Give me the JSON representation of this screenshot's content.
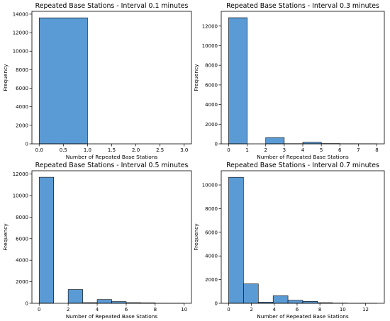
{
  "chart_data": [
    {
      "type": "bar",
      "title": "Repeated Base Stations - Interval 0.1 minutes",
      "xlabel": "Number of Repeated Base Stations",
      "ylabel": "Frequency",
      "xlim": [
        -0.15,
        3.15
      ],
      "ylim": [
        0,
        14300
      ],
      "xticks": [
        "0.0",
        "0.5",
        "1.0",
        "1.5",
        "2.0",
        "2.5",
        "3.0"
      ],
      "yticks": [
        "0",
        "2000",
        "4000",
        "6000",
        "8000",
        "10000",
        "12000",
        "14000"
      ],
      "bins": [
        {
          "x0": 0,
          "x1": 1,
          "value": 13600
        },
        {
          "x0": 1,
          "x1": 2,
          "value": 0
        },
        {
          "x0": 2,
          "x1": 3,
          "value": 0
        }
      ],
      "bar_color": "#5b9bd5",
      "grid": false
    },
    {
      "type": "bar",
      "title": "Repeated Base Stations - Interval 0.3 minutes",
      "xlabel": "Number of Repeated Base Stations",
      "ylabel": "Frequency",
      "xlim": [
        -0.4,
        8.4
      ],
      "ylim": [
        0,
        13500
      ],
      "xticks": [
        "0",
        "1",
        "2",
        "3",
        "4",
        "5",
        "6",
        "7",
        "8"
      ],
      "yticks": [
        "0",
        "2000",
        "4000",
        "6000",
        "8000",
        "10000",
        "12000"
      ],
      "bins": [
        {
          "x0": 0,
          "x1": 1,
          "value": 12850
        },
        {
          "x0": 1,
          "x1": 2,
          "value": 0
        },
        {
          "x0": 2,
          "x1": 3,
          "value": 640
        },
        {
          "x0": 3,
          "x1": 4,
          "value": 20
        },
        {
          "x0": 4,
          "x1": 5,
          "value": 170
        },
        {
          "x0": 5,
          "x1": 6,
          "value": 30
        },
        {
          "x0": 6,
          "x1": 7,
          "value": 15
        },
        {
          "x0": 7,
          "x1": 8,
          "value": 8
        }
      ],
      "bar_color": "#5b9bd5",
      "grid": false
    },
    {
      "type": "bar",
      "title": "Repeated Base Stations - Interval 0.5 minutes",
      "xlabel": "Number of Repeated Base Stations",
      "ylabel": "Frequency",
      "xlim": [
        -0.5,
        10.5
      ],
      "ylim": [
        0,
        12300
      ],
      "xticks": [
        "0",
        "2",
        "4",
        "6",
        "8",
        "10"
      ],
      "yticks": [
        "0",
        "2000",
        "4000",
        "6000",
        "8000",
        "10000",
        "12000"
      ],
      "bins": [
        {
          "x0": 0,
          "x1": 1,
          "value": 11700
        },
        {
          "x0": 1,
          "x1": 2,
          "value": 0
        },
        {
          "x0": 2,
          "x1": 3,
          "value": 1280
        },
        {
          "x0": 3,
          "x1": 4,
          "value": 60
        },
        {
          "x0": 4,
          "x1": 5,
          "value": 350
        },
        {
          "x0": 5,
          "x1": 6,
          "value": 160
        },
        {
          "x0": 6,
          "x1": 7,
          "value": 60
        },
        {
          "x0": 7,
          "x1": 8,
          "value": 40
        },
        {
          "x0": 8,
          "x1": 9,
          "value": 10
        },
        {
          "x0": 9,
          "x1": 10,
          "value": 5
        }
      ],
      "bar_color": "#5b9bd5",
      "grid": false
    },
    {
      "type": "bar",
      "title": "Repeated Base Stations - Interval 0.7 minutes",
      "xlabel": "Number of Repeated Base Stations",
      "ylabel": "Frequency",
      "xlim": [
        -0.65,
        13.65
      ],
      "ylim": [
        0,
        11200
      ],
      "xticks": [
        "0",
        "2",
        "4",
        "6",
        "8",
        "10",
        "12"
      ],
      "yticks": [
        "0",
        "2000",
        "4000",
        "6000",
        "8000",
        "10000"
      ],
      "bins": [
        {
          "x0": 0,
          "x1": 1.3,
          "value": 10650
        },
        {
          "x0": 1.3,
          "x1": 2.6,
          "value": 1640
        },
        {
          "x0": 2.6,
          "x1": 3.9,
          "value": 100
        },
        {
          "x0": 3.9,
          "x1": 5.2,
          "value": 640
        },
        {
          "x0": 5.2,
          "x1": 6.5,
          "value": 260
        },
        {
          "x0": 6.5,
          "x1": 7.8,
          "value": 160
        },
        {
          "x0": 7.8,
          "x1": 9.1,
          "value": 50
        },
        {
          "x0": 9.1,
          "x1": 10.4,
          "value": 20
        },
        {
          "x0": 10.4,
          "x1": 11.7,
          "value": 6
        },
        {
          "x0": 11.7,
          "x1": 13.0,
          "value": 3
        }
      ],
      "bar_color": "#5b9bd5",
      "grid": false
    }
  ]
}
